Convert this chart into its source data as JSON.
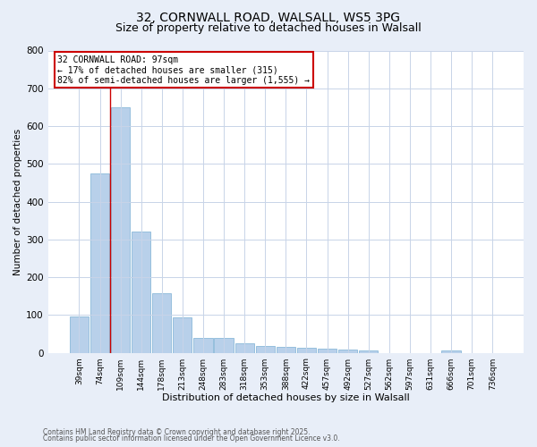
{
  "title_line1": "32, CORNWALL ROAD, WALSALL, WS5 3PG",
  "title_line2": "Size of property relative to detached houses in Walsall",
  "xlabel": "Distribution of detached houses by size in Walsall",
  "ylabel": "Number of detached properties",
  "categories": [
    "39sqm",
    "74sqm",
    "109sqm",
    "144sqm",
    "178sqm",
    "213sqm",
    "248sqm",
    "283sqm",
    "318sqm",
    "353sqm",
    "388sqm",
    "422sqm",
    "457sqm",
    "492sqm",
    "527sqm",
    "562sqm",
    "597sqm",
    "631sqm",
    "666sqm",
    "701sqm",
    "736sqm"
  ],
  "values": [
    95,
    475,
    650,
    320,
    158,
    93,
    40,
    40,
    25,
    18,
    15,
    13,
    12,
    8,
    6,
    0,
    0,
    0,
    5,
    0,
    0
  ],
  "bar_color": "#b8d0ea",
  "bar_edge_color": "#7aafd4",
  "vline_x_idx": 1.5,
  "vline_color": "#cc0000",
  "annotation_line1": "32 CORNWALL ROAD: 97sqm",
  "annotation_line2": "← 17% of detached houses are smaller (315)",
  "annotation_line3": "82% of semi-detached houses are larger (1,555) →",
  "annotation_box_edge": "#cc0000",
  "annotation_fill": "#ffffff",
  "ylim": [
    0,
    800
  ],
  "yticks": [
    0,
    100,
    200,
    300,
    400,
    500,
    600,
    700,
    800
  ],
  "grid_color": "#c8d4e8",
  "bg_color": "#e8eef8",
  "plot_bg": "#ffffff",
  "footer_line1": "Contains HM Land Registry data © Crown copyright and database right 2025.",
  "footer_line2": "Contains public sector information licensed under the Open Government Licence v3.0.",
  "title_fontsize": 10,
  "subtitle_fontsize": 9,
  "xlabel_fontsize": 8,
  "ylabel_fontsize": 7.5
}
